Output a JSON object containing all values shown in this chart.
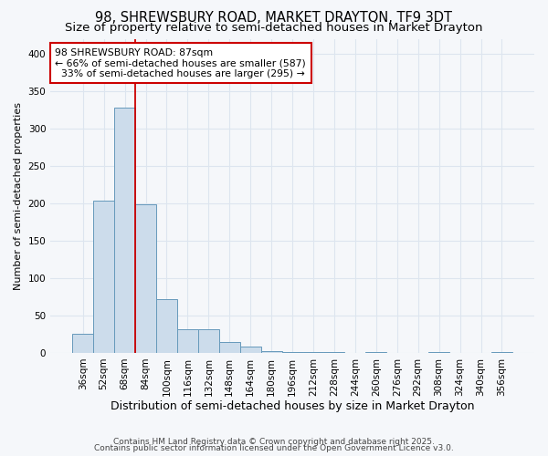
{
  "title1": "98, SHREWSBURY ROAD, MARKET DRAYTON, TF9 3DT",
  "title2": "Size of property relative to semi-detached houses in Market Drayton",
  "xlabel": "Distribution of semi-detached houses by size in Market Drayton",
  "ylabel": "Number of semi-detached properties",
  "bins": [
    "36sqm",
    "52sqm",
    "68sqm",
    "84sqm",
    "100sqm",
    "116sqm",
    "132sqm",
    "148sqm",
    "164sqm",
    "180sqm",
    "196sqm",
    "212sqm",
    "228sqm",
    "244sqm",
    "260sqm",
    "276sqm",
    "292sqm",
    "308sqm",
    "324sqm",
    "340sqm",
    "356sqm"
  ],
  "values": [
    25,
    203,
    328,
    199,
    72,
    32,
    32,
    15,
    9,
    2,
    1,
    1,
    1,
    0,
    1,
    0,
    0,
    1,
    0,
    0,
    1
  ],
  "bar_color": "#ccdceb",
  "bar_edge_color": "#6699bb",
  "vline_color": "#cc0000",
  "vline_pos": 2.5,
  "annotation_text": "98 SHREWSBURY ROAD: 87sqm\n← 66% of semi-detached houses are smaller (587)\n  33% of semi-detached houses are larger (295) →",
  "annotation_box_color": "#ffffff",
  "annotation_box_edge": "#cc0000",
  "ylim": [
    0,
    420
  ],
  "yticks": [
    0,
    50,
    100,
    150,
    200,
    250,
    300,
    350,
    400
  ],
  "footer1": "Contains HM Land Registry data © Crown copyright and database right 2025.",
  "footer2": "Contains public sector information licensed under the Open Government Licence v3.0.",
  "background_color": "#f5f7fa",
  "plot_background": "#f5f7fa",
  "grid_color": "#dde5ef",
  "title_fontsize": 10.5,
  "subtitle_fontsize": 9.5,
  "ylabel_fontsize": 8,
  "xlabel_fontsize": 9,
  "tick_fontsize": 7.5,
  "annotation_fontsize": 7.8,
  "footer_fontsize": 6.5
}
